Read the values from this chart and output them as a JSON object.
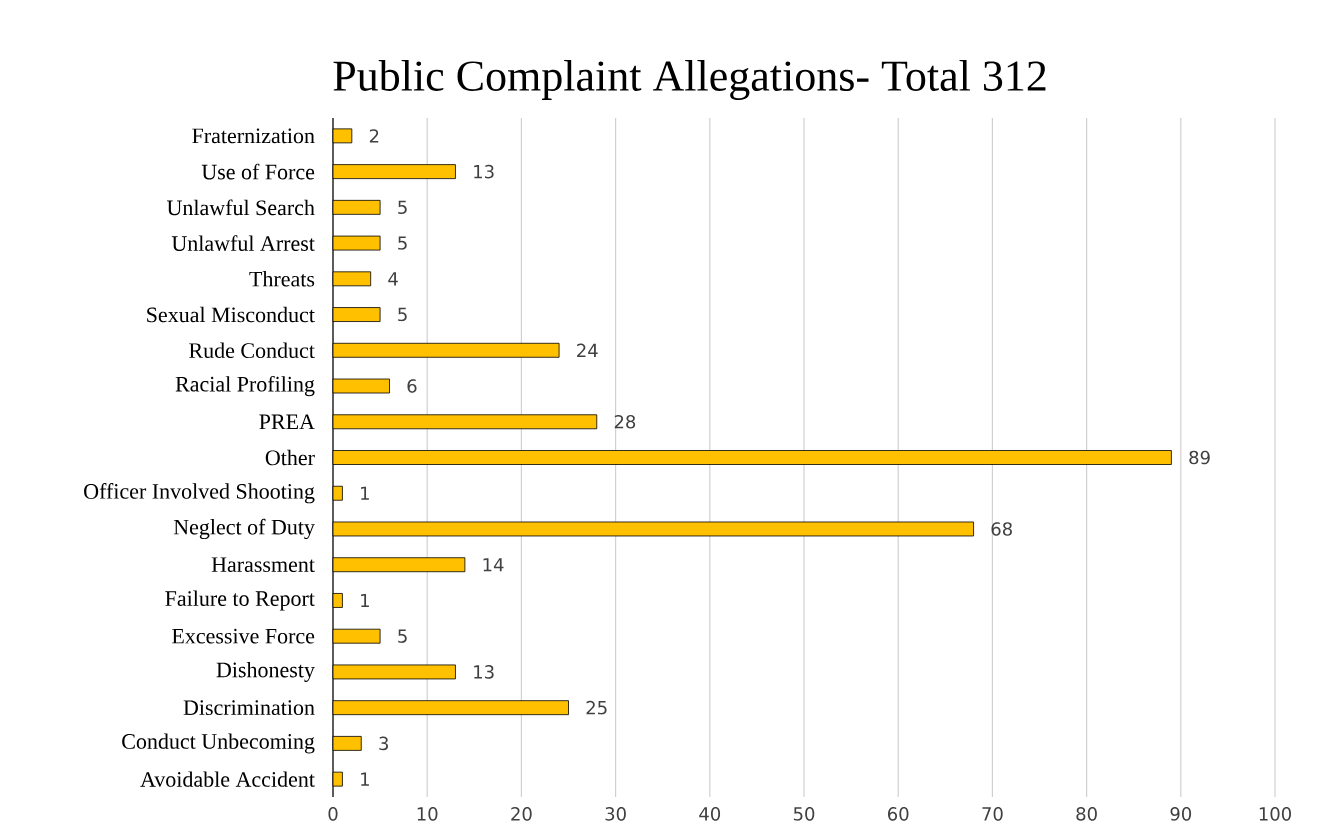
{
  "chart_data": {
    "type": "bar",
    "orientation": "horizontal",
    "title": "Public Complaint Allegations- Total 312",
    "categories": [
      "Fraternization",
      "Use of Force",
      "Unlawful Search",
      "Unlawful Arrest",
      "Threats",
      "Sexual Misconduct",
      "Rude Conduct",
      "Racial Profiling",
      "PREA",
      "Other",
      "Officer Involved Shooting",
      "Neglect of Duty",
      "Harassment",
      "Failure to Report",
      "Excessive Force",
      "Dishonesty",
      "Discrimination",
      "Conduct Unbecoming",
      "Avoidable Accident"
    ],
    "values": [
      2,
      13,
      5,
      5,
      4,
      5,
      24,
      6,
      28,
      89,
      1,
      68,
      14,
      1,
      5,
      13,
      25,
      3,
      1
    ],
    "color": "#ffc000",
    "xlim": [
      0,
      100
    ],
    "xticks": [
      0,
      10,
      20,
      30,
      40,
      50,
      60,
      70,
      80,
      90,
      100
    ],
    "grid": "x",
    "data_labels": true
  }
}
